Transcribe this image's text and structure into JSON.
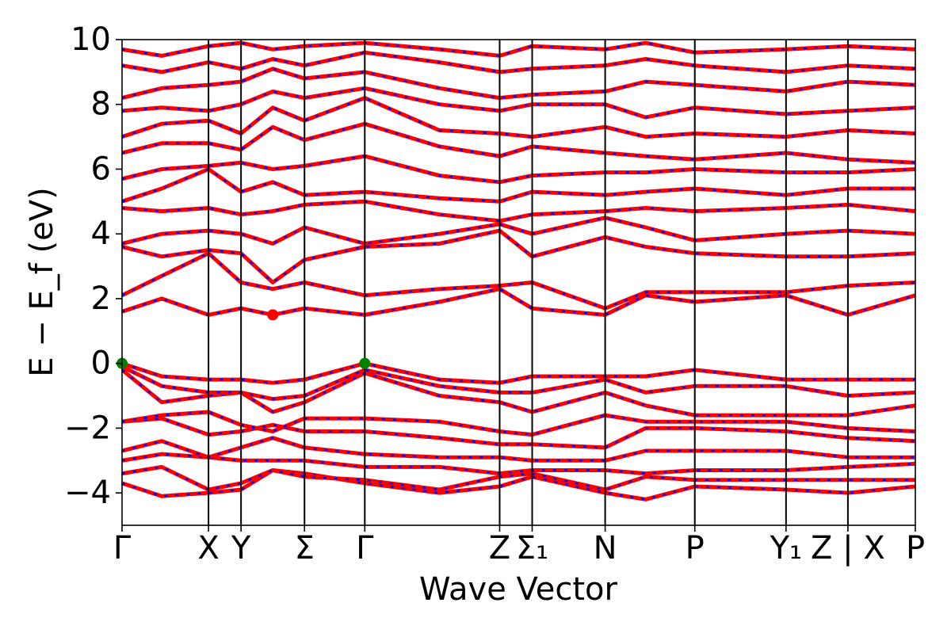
{
  "chart_data": {
    "type": "line",
    "xlabel": "Wave Vector",
    "ylabel": "E − E_f (eV)",
    "ylim": [
      -5,
      10
    ],
    "yticks": [
      -4,
      -2,
      0,
      2,
      4,
      6,
      8,
      10
    ],
    "grid": false,
    "legend": "none",
    "kpoints": [
      {
        "label": "Γ",
        "x": 0.0
      },
      {
        "label": "X",
        "x": 0.109
      },
      {
        "label": "Y",
        "x": 0.15
      },
      {
        "label": "Σ",
        "x": 0.23
      },
      {
        "label": "Γ",
        "x": 0.306
      },
      {
        "label": "Z",
        "x": 0.476
      },
      {
        "label": "Σ₁",
        "x": 0.517
      },
      {
        "label": "N",
        "x": 0.609
      },
      {
        "label": "P",
        "x": 0.722
      },
      {
        "label": "Y₁",
        "x": 0.837
      },
      {
        "label": "Z | X",
        "x": 0.915
      },
      {
        "label": "P",
        "x": 1.0
      }
    ],
    "vbm": [
      {
        "x": 0.0,
        "y": 0.0
      },
      {
        "x": 0.306,
        "y": 0.0
      }
    ],
    "cbm": [
      {
        "x": 0.19,
        "y": 1.5
      }
    ],
    "colors": {
      "band_solid": "#ff0000",
      "band_dashed": "#0000ff",
      "vbm_marker": "#008000",
      "cbm_marker": "#ff0000",
      "axis": "#000000"
    },
    "bands": [
      [
        [
          0.0,
          -3.7
        ],
        [
          0.05,
          -4.1
        ],
        [
          0.109,
          -4.0
        ],
        [
          0.15,
          -3.9
        ],
        [
          0.19,
          -3.3
        ],
        [
          0.23,
          -3.4
        ],
        [
          0.306,
          -3.7
        ],
        [
          0.4,
          -4.0
        ],
        [
          0.476,
          -3.8
        ],
        [
          0.517,
          -3.5
        ],
        [
          0.609,
          -4.0
        ],
        [
          0.66,
          -4.2
        ],
        [
          0.722,
          -3.8
        ],
        [
          0.837,
          -3.9
        ],
        [
          0.915,
          -4.0
        ],
        [
          1.0,
          -3.8
        ]
      ],
      [
        [
          0.0,
          -3.4
        ],
        [
          0.05,
          -3.2
        ],
        [
          0.109,
          -3.9
        ],
        [
          0.15,
          -3.7
        ],
        [
          0.19,
          -3.3
        ],
        [
          0.23,
          -3.5
        ],
        [
          0.306,
          -3.6
        ],
        [
          0.4,
          -3.9
        ],
        [
          0.476,
          -3.5
        ],
        [
          0.517,
          -3.4
        ],
        [
          0.609,
          -3.9
        ],
        [
          0.66,
          -3.5
        ],
        [
          0.722,
          -3.6
        ],
        [
          0.837,
          -3.6
        ],
        [
          0.915,
          -3.6
        ],
        [
          1.0,
          -3.6
        ]
      ],
      [
        [
          0.0,
          -3.0
        ],
        [
          0.05,
          -2.8
        ],
        [
          0.109,
          -2.9
        ],
        [
          0.15,
          -3.0
        ],
        [
          0.19,
          -3.0
        ],
        [
          0.23,
          -3.0
        ],
        [
          0.306,
          -3.2
        ],
        [
          0.4,
          -3.2
        ],
        [
          0.476,
          -3.4
        ],
        [
          0.517,
          -3.3
        ],
        [
          0.609,
          -3.3
        ],
        [
          0.66,
          -3.4
        ],
        [
          0.722,
          -3.3
        ],
        [
          0.837,
          -3.3
        ],
        [
          0.915,
          -3.2
        ],
        [
          1.0,
          -3.1
        ]
      ],
      [
        [
          0.0,
          -2.7
        ],
        [
          0.05,
          -2.4
        ],
        [
          0.109,
          -2.9
        ],
        [
          0.15,
          -2.6
        ],
        [
          0.19,
          -2.3
        ],
        [
          0.23,
          -2.6
        ],
        [
          0.306,
          -2.8
        ],
        [
          0.4,
          -2.9
        ],
        [
          0.476,
          -2.9
        ],
        [
          0.517,
          -3.0
        ],
        [
          0.609,
          -3.0
        ],
        [
          0.66,
          -2.7
        ],
        [
          0.722,
          -2.7
        ],
        [
          0.837,
          -2.7
        ],
        [
          0.915,
          -2.9
        ],
        [
          1.0,
          -2.9
        ]
      ],
      [
        [
          0.0,
          -1.8
        ],
        [
          0.05,
          -1.7
        ],
        [
          0.109,
          -2.2
        ],
        [
          0.15,
          -2.1
        ],
        [
          0.19,
          -1.9
        ],
        [
          0.23,
          -2.1
        ],
        [
          0.306,
          -2.1
        ],
        [
          0.4,
          -2.3
        ],
        [
          0.476,
          -2.5
        ],
        [
          0.517,
          -2.5
        ],
        [
          0.609,
          -2.6
        ],
        [
          0.66,
          -2.0
        ],
        [
          0.722,
          -2.0
        ],
        [
          0.837,
          -2.1
        ],
        [
          0.915,
          -2.3
        ],
        [
          1.0,
          -2.4
        ]
      ],
      [
        [
          0.0,
          -1.8
        ],
        [
          0.05,
          -1.6
        ],
        [
          0.109,
          -1.5
        ],
        [
          0.15,
          -1.9
        ],
        [
          0.19,
          -2.1
        ],
        [
          0.23,
          -1.7
        ],
        [
          0.306,
          -1.7
        ],
        [
          0.4,
          -1.8
        ],
        [
          0.476,
          -2.1
        ],
        [
          0.517,
          -2.2
        ],
        [
          0.609,
          -1.6
        ],
        [
          0.66,
          -1.8
        ],
        [
          0.722,
          -1.8
        ],
        [
          0.837,
          -1.8
        ],
        [
          0.915,
          -2.0
        ],
        [
          1.0,
          -2.1
        ]
      ],
      [
        [
          0.0,
          -0.2
        ],
        [
          0.05,
          -1.2
        ],
        [
          0.109,
          -1.0
        ],
        [
          0.15,
          -0.9
        ],
        [
          0.19,
          -1.5
        ],
        [
          0.23,
          -1.2
        ],
        [
          0.306,
          -0.3
        ],
        [
          0.4,
          -1.0
        ],
        [
          0.476,
          -1.2
        ],
        [
          0.517,
          -1.5
        ],
        [
          0.609,
          -0.9
        ],
        [
          0.66,
          -1.3
        ],
        [
          0.722,
          -1.6
        ],
        [
          0.837,
          -1.6
        ],
        [
          0.915,
          -1.6
        ],
        [
          1.0,
          -1.3
        ]
      ],
      [
        [
          0.0,
          -0.1
        ],
        [
          0.05,
          -0.7
        ],
        [
          0.109,
          -0.9
        ],
        [
          0.15,
          -0.9
        ],
        [
          0.19,
          -1.1
        ],
        [
          0.23,
          -1.0
        ],
        [
          0.306,
          -0.2
        ],
        [
          0.4,
          -0.7
        ],
        [
          0.476,
          -0.9
        ],
        [
          0.517,
          -0.9
        ],
        [
          0.609,
          -0.5
        ],
        [
          0.66,
          -0.9
        ],
        [
          0.722,
          -0.7
        ],
        [
          0.837,
          -0.7
        ],
        [
          0.915,
          -1.0
        ],
        [
          1.0,
          -0.9
        ]
      ],
      [
        [
          0.0,
          0.0
        ],
        [
          0.05,
          -0.4
        ],
        [
          0.109,
          -0.5
        ],
        [
          0.15,
          -0.5
        ],
        [
          0.19,
          -0.6
        ],
        [
          0.23,
          -0.5
        ],
        [
          0.306,
          0.0
        ],
        [
          0.4,
          -0.5
        ],
        [
          0.476,
          -0.6
        ],
        [
          0.517,
          -0.4
        ],
        [
          0.609,
          -0.4
        ],
        [
          0.66,
          -0.4
        ],
        [
          0.722,
          -0.2
        ],
        [
          0.837,
          -0.5
        ],
        [
          0.915,
          -0.5
        ],
        [
          1.0,
          -0.5
        ]
      ],
      [
        [
          0.0,
          1.6
        ],
        [
          0.05,
          2.0
        ],
        [
          0.109,
          1.5
        ],
        [
          0.15,
          1.7
        ],
        [
          0.19,
          1.5
        ],
        [
          0.23,
          1.7
        ],
        [
          0.306,
          1.5
        ],
        [
          0.4,
          1.9
        ],
        [
          0.476,
          2.3
        ],
        [
          0.517,
          1.7
        ],
        [
          0.609,
          1.5
        ],
        [
          0.66,
          2.1
        ],
        [
          0.722,
          1.9
        ],
        [
          0.837,
          2.1
        ],
        [
          0.915,
          1.5
        ],
        [
          1.0,
          2.1
        ]
      ],
      [
        [
          0.0,
          2.1
        ],
        [
          0.05,
          2.7
        ],
        [
          0.109,
          3.4
        ],
        [
          0.15,
          2.5
        ],
        [
          0.19,
          2.3
        ],
        [
          0.23,
          2.5
        ],
        [
          0.306,
          2.1
        ],
        [
          0.4,
          2.3
        ],
        [
          0.476,
          2.4
        ],
        [
          0.517,
          2.5
        ],
        [
          0.609,
          1.7
        ],
        [
          0.66,
          2.2
        ],
        [
          0.722,
          2.2
        ],
        [
          0.837,
          2.2
        ],
        [
          0.915,
          2.4
        ],
        [
          1.0,
          2.5
        ]
      ],
      [
        [
          0.0,
          3.6
        ],
        [
          0.05,
          3.3
        ],
        [
          0.109,
          3.5
        ],
        [
          0.15,
          3.4
        ],
        [
          0.19,
          2.5
        ],
        [
          0.23,
          3.2
        ],
        [
          0.306,
          3.6
        ],
        [
          0.4,
          3.7
        ],
        [
          0.476,
          4.1
        ],
        [
          0.517,
          3.3
        ],
        [
          0.609,
          3.9
        ],
        [
          0.66,
          3.6
        ],
        [
          0.722,
          3.4
        ],
        [
          0.837,
          3.3
        ],
        [
          0.915,
          3.3
        ],
        [
          1.0,
          3.4
        ]
      ],
      [
        [
          0.0,
          3.7
        ],
        [
          0.05,
          4.0
        ],
        [
          0.109,
          4.1
        ],
        [
          0.15,
          4.0
        ],
        [
          0.19,
          3.7
        ],
        [
          0.23,
          4.2
        ],
        [
          0.306,
          3.7
        ],
        [
          0.4,
          4.0
        ],
        [
          0.476,
          4.3
        ],
        [
          0.517,
          4.0
        ],
        [
          0.609,
          4.5
        ],
        [
          0.66,
          4.2
        ],
        [
          0.722,
          3.8
        ],
        [
          0.837,
          4.0
        ],
        [
          0.915,
          4.1
        ],
        [
          1.0,
          4.0
        ]
      ],
      [
        [
          0.0,
          4.8
        ],
        [
          0.05,
          4.7
        ],
        [
          0.109,
          4.8
        ],
        [
          0.15,
          4.6
        ],
        [
          0.19,
          4.7
        ],
        [
          0.23,
          4.9
        ],
        [
          0.306,
          5.0
        ],
        [
          0.4,
          4.6
        ],
        [
          0.476,
          4.4
        ],
        [
          0.517,
          4.6
        ],
        [
          0.609,
          4.7
        ],
        [
          0.66,
          4.8
        ],
        [
          0.722,
          4.7
        ],
        [
          0.837,
          4.8
        ],
        [
          0.915,
          4.9
        ],
        [
          1.0,
          4.7
        ]
      ],
      [
        [
          0.0,
          5.0
        ],
        [
          0.05,
          5.4
        ],
        [
          0.109,
          6.0
        ],
        [
          0.15,
          5.3
        ],
        [
          0.19,
          5.6
        ],
        [
          0.23,
          5.2
        ],
        [
          0.306,
          5.3
        ],
        [
          0.4,
          5.1
        ],
        [
          0.476,
          5.0
        ],
        [
          0.517,
          5.3
        ],
        [
          0.609,
          5.2
        ],
        [
          0.66,
          5.3
        ],
        [
          0.722,
          5.4
        ],
        [
          0.837,
          5.2
        ],
        [
          0.915,
          5.4
        ],
        [
          1.0,
          5.4
        ]
      ],
      [
        [
          0.0,
          5.7
        ],
        [
          0.05,
          6.0
        ],
        [
          0.109,
          6.1
        ],
        [
          0.15,
          6.2
        ],
        [
          0.19,
          6.0
        ],
        [
          0.23,
          6.1
        ],
        [
          0.306,
          6.4
        ],
        [
          0.4,
          5.8
        ],
        [
          0.476,
          5.6
        ],
        [
          0.517,
          5.8
        ],
        [
          0.609,
          5.9
        ],
        [
          0.66,
          5.9
        ],
        [
          0.722,
          6.0
        ],
        [
          0.837,
          5.9
        ],
        [
          0.915,
          5.9
        ],
        [
          1.0,
          6.0
        ]
      ],
      [
        [
          0.0,
          6.5
        ],
        [
          0.05,
          6.8
        ],
        [
          0.109,
          6.8
        ],
        [
          0.15,
          6.6
        ],
        [
          0.19,
          7.3
        ],
        [
          0.23,
          6.9
        ],
        [
          0.306,
          7.4
        ],
        [
          0.4,
          6.7
        ],
        [
          0.476,
          6.4
        ],
        [
          0.517,
          6.7
        ],
        [
          0.609,
          6.5
        ],
        [
          0.66,
          6.4
        ],
        [
          0.722,
          6.3
        ],
        [
          0.837,
          6.5
        ],
        [
          0.915,
          6.3
        ],
        [
          1.0,
          6.2
        ]
      ],
      [
        [
          0.0,
          7.0
        ],
        [
          0.05,
          7.4
        ],
        [
          0.109,
          7.5
        ],
        [
          0.15,
          7.1
        ],
        [
          0.19,
          7.9
        ],
        [
          0.23,
          7.5
        ],
        [
          0.306,
          8.2
        ],
        [
          0.4,
          7.2
        ],
        [
          0.476,
          7.1
        ],
        [
          0.517,
          7.0
        ],
        [
          0.609,
          7.3
        ],
        [
          0.66,
          7.0
        ],
        [
          0.722,
          7.1
        ],
        [
          0.837,
          7.0
        ],
        [
          0.915,
          7.2
        ],
        [
          1.0,
          7.1
        ]
      ],
      [
        [
          0.0,
          7.8
        ],
        [
          0.05,
          7.9
        ],
        [
          0.109,
          7.8
        ],
        [
          0.15,
          8.0
        ],
        [
          0.19,
          8.4
        ],
        [
          0.23,
          8.2
        ],
        [
          0.306,
          8.5
        ],
        [
          0.4,
          8.0
        ],
        [
          0.476,
          7.8
        ],
        [
          0.517,
          8.0
        ],
        [
          0.609,
          8.0
        ],
        [
          0.66,
          7.6
        ],
        [
          0.722,
          7.9
        ],
        [
          0.837,
          7.7
        ],
        [
          0.915,
          7.8
        ],
        [
          1.0,
          7.9
        ]
      ],
      [
        [
          0.0,
          8.2
        ],
        [
          0.05,
          8.5
        ],
        [
          0.109,
          8.6
        ],
        [
          0.15,
          8.7
        ],
        [
          0.19,
          9.1
        ],
        [
          0.23,
          8.8
        ],
        [
          0.306,
          9.0
        ],
        [
          0.4,
          8.5
        ],
        [
          0.476,
          8.2
        ],
        [
          0.517,
          8.3
        ],
        [
          0.609,
          8.4
        ],
        [
          0.66,
          8.7
        ],
        [
          0.722,
          8.6
        ],
        [
          0.837,
          8.4
        ],
        [
          0.915,
          8.7
        ],
        [
          1.0,
          8.6
        ]
      ],
      [
        [
          0.0,
          9.2
        ],
        [
          0.05,
          9.0
        ],
        [
          0.109,
          9.3
        ],
        [
          0.15,
          9.1
        ],
        [
          0.19,
          9.4
        ],
        [
          0.23,
          9.2
        ],
        [
          0.306,
          9.6
        ],
        [
          0.4,
          9.3
        ],
        [
          0.476,
          9.0
        ],
        [
          0.517,
          9.1
        ],
        [
          0.609,
          9.2
        ],
        [
          0.66,
          9.4
        ],
        [
          0.722,
          9.2
        ],
        [
          0.837,
          9.0
        ],
        [
          0.915,
          9.2
        ],
        [
          1.0,
          9.1
        ]
      ],
      [
        [
          0.0,
          9.7
        ],
        [
          0.05,
          9.5
        ],
        [
          0.109,
          9.8
        ],
        [
          0.15,
          9.9
        ],
        [
          0.19,
          9.7
        ],
        [
          0.23,
          9.8
        ],
        [
          0.306,
          9.9
        ],
        [
          0.4,
          9.7
        ],
        [
          0.476,
          9.5
        ],
        [
          0.517,
          9.8
        ],
        [
          0.609,
          9.7
        ],
        [
          0.66,
          9.9
        ],
        [
          0.722,
          9.6
        ],
        [
          0.837,
          9.7
        ],
        [
          0.915,
          9.8
        ],
        [
          1.0,
          9.7
        ]
      ]
    ]
  }
}
